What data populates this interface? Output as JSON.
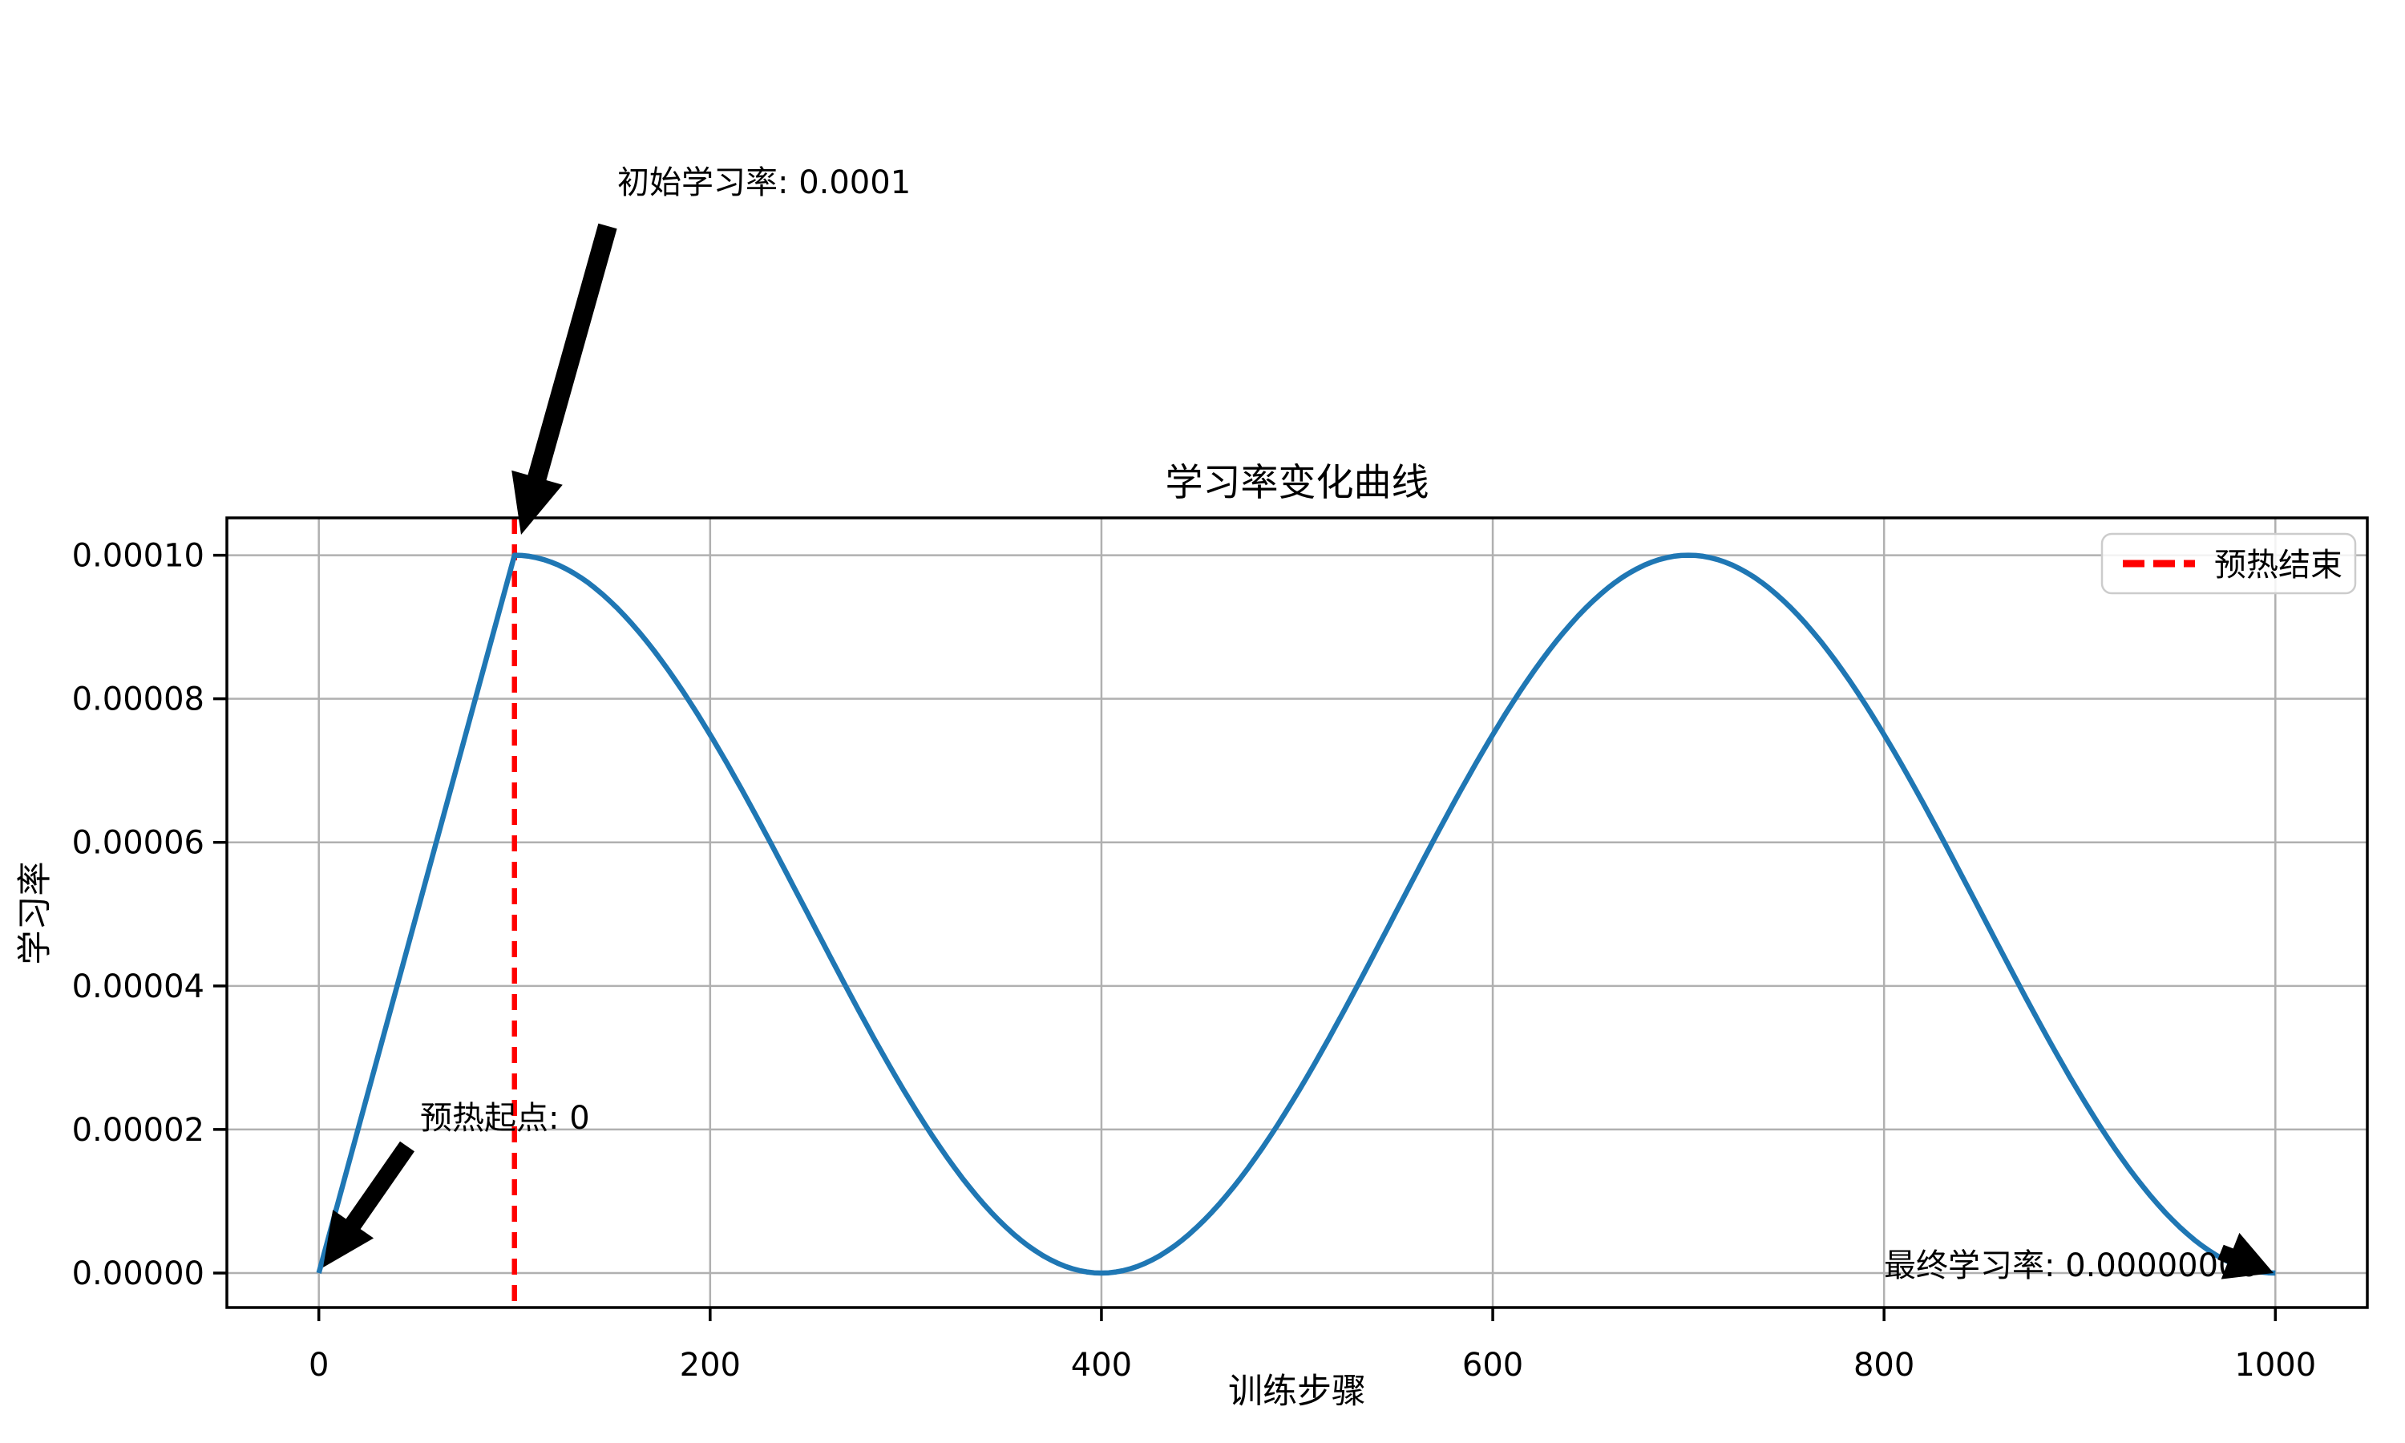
{
  "chart_data": {
    "type": "line",
    "title": "学习率变化曲线",
    "xlabel": "训练步骤",
    "ylabel": "学习率",
    "grid": true,
    "xlim": [
      -47,
      1047
    ],
    "ylim": [
      -4.8e-06,
      0.0001052
    ],
    "x_ticks": [
      0,
      200,
      400,
      600,
      800,
      1000
    ],
    "y_ticks": [
      {
        "value": 0.0,
        "label": "0.00000"
      },
      {
        "value": 2e-05,
        "label": "0.00002"
      },
      {
        "value": 4e-05,
        "label": "0.00004"
      },
      {
        "value": 6e-05,
        "label": "0.00006"
      },
      {
        "value": 8e-05,
        "label": "0.00008"
      },
      {
        "value": 0.0001,
        "label": "0.00010"
      }
    ],
    "series": [
      {
        "name": "学习率",
        "color": "#1f77b4",
        "description": "linear warmup 0→0.0001 over steps 0-100, then cosine annealing with period 600 (min 0 at step 400, max 0.0001 at step 700, 0 at step 1000)",
        "key_points": [
          [
            0,
            0
          ],
          [
            100,
            0.0001
          ],
          [
            400,
            0
          ],
          [
            700,
            0.0001
          ],
          [
            1000,
            0
          ]
        ],
        "segments": [
          {
            "shape": "linear",
            "from": [
              0,
              0
            ],
            "to": [
              100,
              0.0001
            ]
          },
          {
            "shape": "cosine",
            "from": [
              100,
              0.0001
            ],
            "to": [
              400,
              0
            ]
          },
          {
            "shape": "cosine",
            "from": [
              400,
              0
            ],
            "to": [
              700,
              0.0001
            ]
          },
          {
            "shape": "cosine",
            "from": [
              700,
              0.0001
            ],
            "to": [
              1000,
              0
            ]
          }
        ]
      }
    ],
    "vline": {
      "x": 100,
      "color": "#ff0000",
      "style": "dashed",
      "label": "预热结束"
    },
    "legend": {
      "position": "upper right",
      "entries": [
        {
          "label": "预热结束",
          "color": "#ff0000",
          "style": "dashed"
        }
      ]
    },
    "annotations": [
      {
        "id": "initial",
        "text": "初始学习率: 0.0001",
        "target_x": 100,
        "target_y": 0.0001
      },
      {
        "id": "warmup_start",
        "text": "预热起点: 0",
        "target_x": 0,
        "target_y": 0
      },
      {
        "id": "final",
        "text": "最终学习率: 0.00000000",
        "target_x": 1000,
        "target_y": 0
      }
    ],
    "colors": {
      "line": "#1f77b4",
      "vline": "#ff0000",
      "grid": "#b0b0b0",
      "spine": "#000000",
      "arrow": "#000000",
      "background": "#ffffff"
    }
  }
}
